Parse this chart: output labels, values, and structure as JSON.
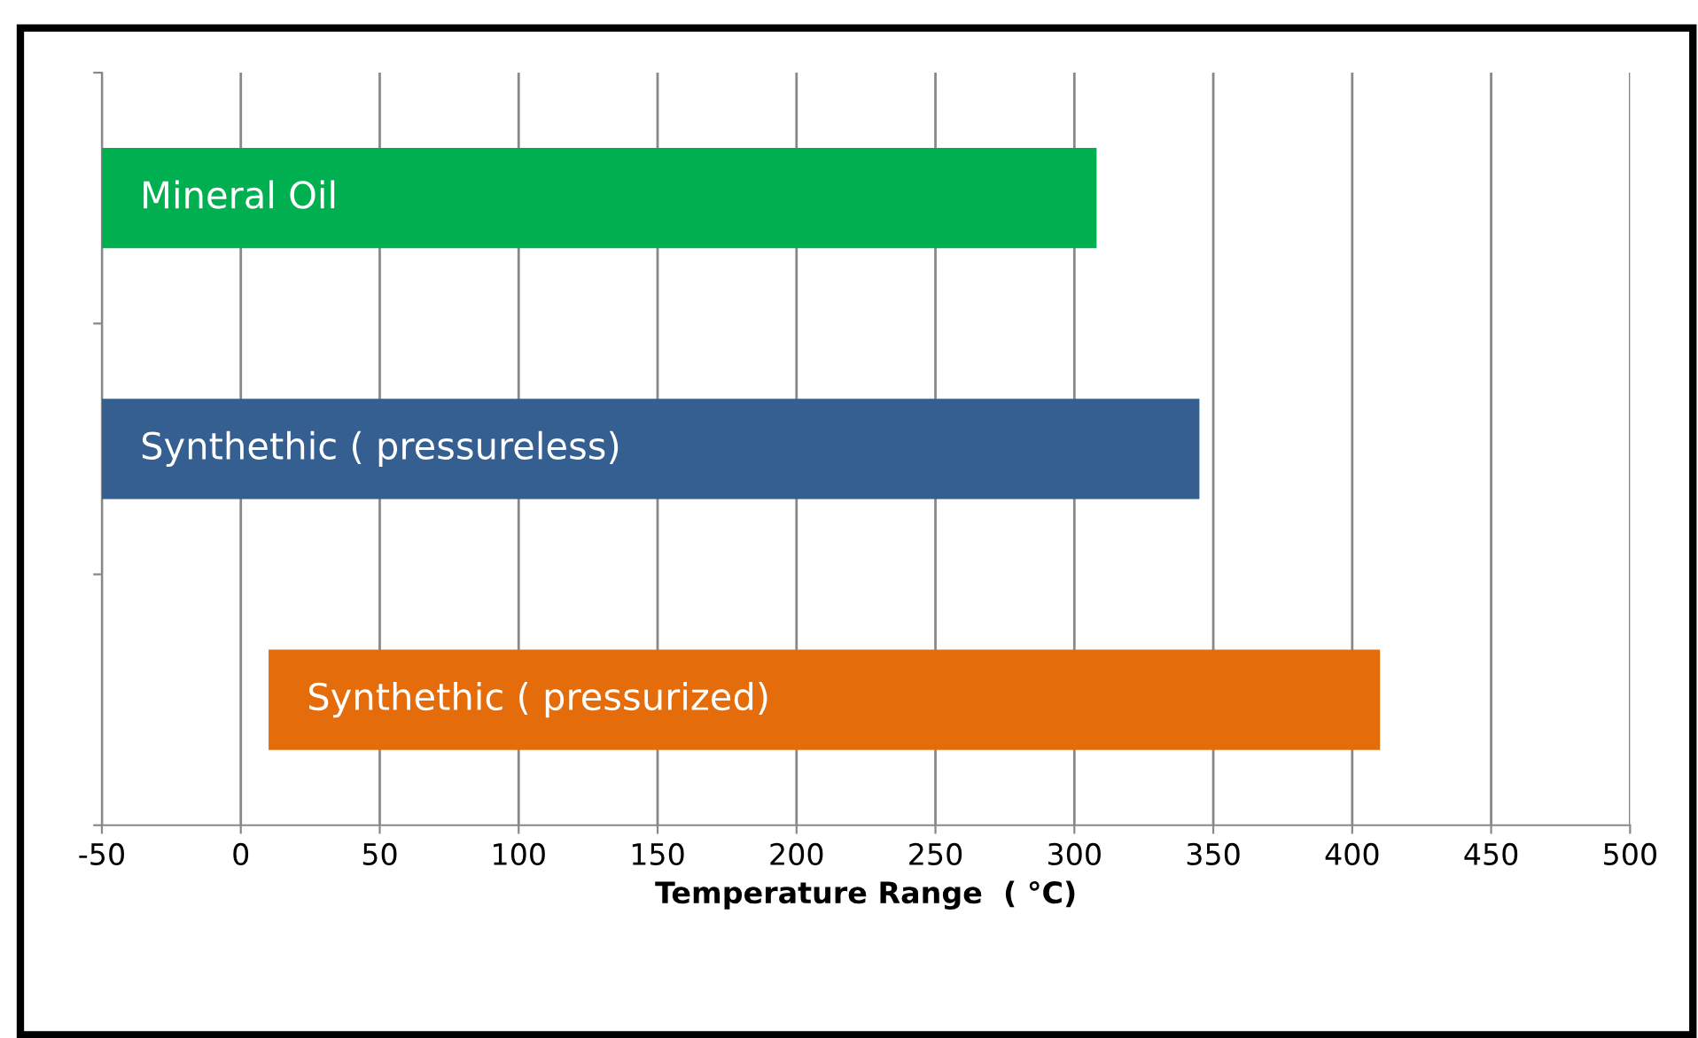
{
  "chart_data": {
    "type": "bar",
    "orientation": "horizontal",
    "xlabel": "Temperature Range  ( °C)",
    "categories": [
      "Mineral Oil",
      "Synthethic ( pressureless)",
      "Synthethic ( pressurized)"
    ],
    "base": [
      -50,
      -50,
      10
    ],
    "values": [
      358,
      395,
      400
    ],
    "colors": [
      "#00b050",
      "#355f91",
      "#e46c0a"
    ],
    "xlim": [
      -50,
      500
    ],
    "xticks": [
      -50,
      0,
      50,
      100,
      150,
      200,
      250,
      300,
      350,
      400,
      450,
      500
    ],
    "grid": "x",
    "tick_labels": "x"
  }
}
